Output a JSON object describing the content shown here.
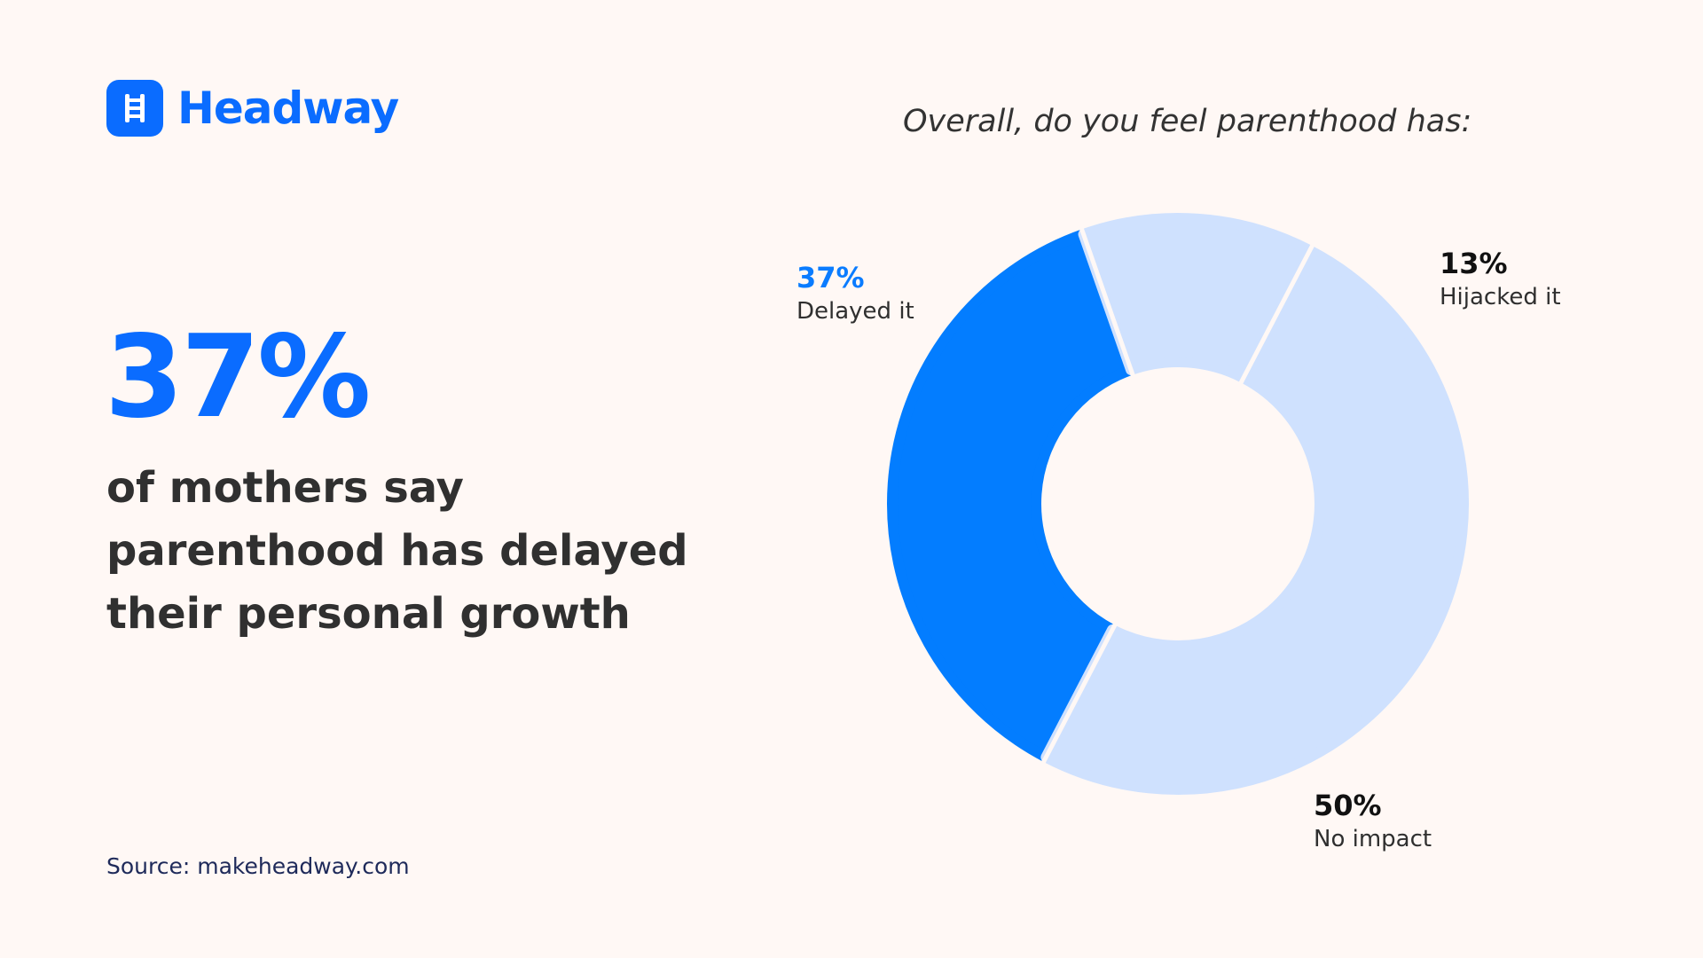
{
  "brand": {
    "name": "Headway",
    "color": "#0A6CFF",
    "logo_icon": "ladder-icon"
  },
  "headline": {
    "stat": "37%",
    "lines": [
      "of mothers say",
      "parenthood has delayed",
      "their personal growth"
    ]
  },
  "source": "Source: makeheadway.com",
  "chart_data": {
    "type": "pie",
    "title": "Overall, do you feel parenthood has:",
    "slices": [
      {
        "label": "Delayed it",
        "value": 37,
        "display": "37%",
        "color": "#037DFF",
        "label_color": "#0A7CFF"
      },
      {
        "label": "Hijacked it",
        "value": 13,
        "display": "13%",
        "color": "#CFE1FE",
        "label_color": "#111111"
      },
      {
        "label": "No impact",
        "value": 50,
        "display": "50%",
        "color": "#CFE1FE",
        "label_color": "#111111"
      }
    ]
  }
}
